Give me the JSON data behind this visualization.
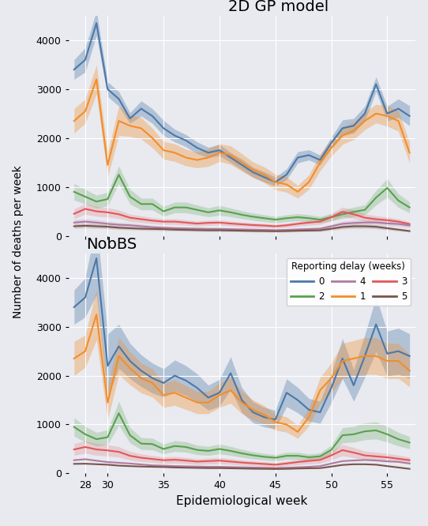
{
  "title_top": "2D GP model",
  "title_bottom": "NobBS",
  "xlabel": "Epidemiological week",
  "ylabel": "Number of deaths per week",
  "background_color": "#e8eaf0",
  "weeks": [
    27,
    28,
    29,
    30,
    31,
    32,
    33,
    34,
    35,
    36,
    37,
    38,
    39,
    40,
    41,
    42,
    43,
    44,
    45,
    46,
    47,
    48,
    49,
    50,
    51,
    52,
    53,
    54,
    55,
    56,
    57
  ],
  "colors": {
    "0": "#4c78a8",
    "1": "#f28e2b",
    "2": "#59a14f",
    "3": "#e15759",
    "4": "#b07aa1",
    "5": "#795548"
  },
  "gp_delay0_mean": [
    3400,
    3600,
    4350,
    3000,
    2800,
    2400,
    2600,
    2450,
    2200,
    2050,
    1950,
    1800,
    1700,
    1750,
    1600,
    1450,
    1300,
    1200,
    1100,
    1250,
    1600,
    1650,
    1550,
    1900,
    2200,
    2250,
    2500,
    3100,
    2500,
    2600,
    2450
  ],
  "gp_delay0_lo": [
    3200,
    3350,
    4100,
    2850,
    2650,
    2300,
    2450,
    2300,
    2050,
    1920,
    1820,
    1680,
    1600,
    1640,
    1500,
    1350,
    1200,
    1100,
    1020,
    1150,
    1490,
    1550,
    1450,
    1780,
    2050,
    2100,
    2350,
    2950,
    2350,
    2420,
    2250
  ],
  "gp_delay0_hi": [
    3600,
    3850,
    4600,
    3150,
    2950,
    2520,
    2760,
    2600,
    2360,
    2180,
    2070,
    1920,
    1810,
    1870,
    1700,
    1570,
    1400,
    1310,
    1200,
    1370,
    1720,
    1760,
    1650,
    2020,
    2370,
    2400,
    2650,
    3250,
    2650,
    2800,
    2660
  ],
  "gp_delay1_mean": [
    2350,
    2550,
    3200,
    1450,
    2350,
    2250,
    2200,
    2000,
    1750,
    1700,
    1600,
    1550,
    1600,
    1700,
    1650,
    1500,
    1350,
    1250,
    1100,
    1050,
    900,
    1100,
    1500,
    1800,
    2050,
    2150,
    2350,
    2500,
    2450,
    2350,
    1700
  ],
  "gp_delay1_lo": [
    2100,
    2300,
    2900,
    1200,
    2050,
    2030,
    1980,
    1800,
    1570,
    1520,
    1430,
    1390,
    1420,
    1520,
    1460,
    1320,
    1190,
    1090,
    940,
    890,
    770,
    950,
    1330,
    1630,
    1870,
    1970,
    2170,
    2310,
    2240,
    2140,
    1490
  ],
  "gp_delay1_hi": [
    2600,
    2800,
    3500,
    1700,
    2650,
    2470,
    2420,
    2200,
    1930,
    1880,
    1770,
    1710,
    1780,
    1880,
    1840,
    1680,
    1510,
    1410,
    1260,
    1210,
    1030,
    1250,
    1670,
    1970,
    2230,
    2330,
    2530,
    2690,
    2660,
    2560,
    1910
  ],
  "gp_delay2_mean": [
    900,
    800,
    700,
    750,
    1250,
    800,
    650,
    650,
    500,
    580,
    580,
    530,
    480,
    520,
    480,
    430,
    390,
    360,
    330,
    360,
    380,
    360,
    330,
    380,
    440,
    490,
    530,
    780,
    980,
    720,
    580
  ],
  "gp_delay2_lo": [
    730,
    650,
    570,
    610,
    1070,
    650,
    530,
    530,
    400,
    470,
    470,
    430,
    390,
    420,
    390,
    350,
    315,
    290,
    265,
    290,
    307,
    290,
    265,
    307,
    355,
    395,
    428,
    630,
    791,
    581,
    468
  ],
  "gp_delay2_hi": [
    1070,
    950,
    830,
    890,
    1430,
    950,
    770,
    770,
    600,
    690,
    690,
    630,
    570,
    620,
    570,
    510,
    465,
    430,
    395,
    430,
    453,
    430,
    395,
    453,
    525,
    585,
    632,
    930,
    1169,
    859,
    692
  ],
  "gp_delay3_mean": [
    450,
    550,
    500,
    480,
    440,
    370,
    340,
    310,
    290,
    290,
    270,
    250,
    265,
    270,
    250,
    235,
    220,
    210,
    195,
    215,
    245,
    270,
    290,
    380,
    490,
    440,
    370,
    340,
    320,
    290,
    240
  ],
  "gp_delay3_lo": [
    350,
    440,
    400,
    384,
    352,
    296,
    272,
    248,
    232,
    232,
    216,
    200,
    212,
    216,
    200,
    188,
    176,
    168,
    156,
    172,
    196,
    216,
    232,
    304,
    392,
    352,
    296,
    272,
    256,
    232,
    192
  ],
  "gp_delay3_hi": [
    550,
    660,
    600,
    576,
    528,
    444,
    408,
    372,
    348,
    348,
    324,
    300,
    318,
    324,
    300,
    282,
    264,
    252,
    234,
    258,
    294,
    324,
    348,
    456,
    588,
    528,
    444,
    408,
    384,
    348,
    288
  ],
  "gp_delay4_mean": [
    270,
    290,
    270,
    245,
    225,
    215,
    195,
    175,
    165,
    155,
    150,
    145,
    140,
    140,
    135,
    130,
    125,
    120,
    115,
    120,
    130,
    137,
    145,
    195,
    245,
    262,
    272,
    272,
    252,
    242,
    212
  ],
  "gp_delay4_lo": [
    210,
    230,
    210,
    192,
    177,
    169,
    153,
    138,
    130,
    122,
    118,
    114,
    110,
    110,
    106,
    102,
    98,
    94,
    90,
    94,
    102,
    108,
    114,
    153,
    192,
    206,
    213,
    213,
    198,
    190,
    166
  ],
  "gp_delay4_hi": [
    330,
    350,
    330,
    298,
    274,
    262,
    238,
    213,
    201,
    189,
    183,
    177,
    171,
    171,
    165,
    159,
    153,
    147,
    141,
    147,
    159,
    167,
    177,
    238,
    299,
    319,
    331,
    331,
    307,
    295,
    259
  ],
  "gp_delay5_mean": [
    195,
    205,
    195,
    185,
    165,
    155,
    145,
    140,
    135,
    126,
    121,
    116,
    112,
    112,
    108,
    104,
    99,
    97,
    93,
    97,
    104,
    108,
    112,
    145,
    179,
    194,
    194,
    184,
    155,
    126,
    97
  ],
  "gp_delay5_lo": [
    152,
    160,
    152,
    144,
    129,
    121,
    113,
    109,
    105,
    98,
    94,
    90,
    87,
    87,
    84,
    81,
    77,
    75,
    72,
    75,
    81,
    84,
    87,
    113,
    139,
    151,
    151,
    143,
    121,
    98,
    75
  ],
  "gp_delay5_hi": [
    238,
    250,
    238,
    226,
    202,
    190,
    178,
    171,
    165,
    154,
    148,
    142,
    137,
    137,
    132,
    127,
    121,
    118,
    113,
    118,
    127,
    132,
    137,
    178,
    219,
    237,
    237,
    225,
    190,
    154,
    118
  ],
  "nobs_delay0_mean": [
    3400,
    3600,
    4400,
    2200,
    2600,
    2300,
    2100,
    1950,
    1850,
    2000,
    1900,
    1750,
    1550,
    1650,
    2050,
    1500,
    1250,
    1150,
    1100,
    1650,
    1500,
    1300,
    1250,
    1750,
    2350,
    1800,
    2400,
    3050,
    2450,
    2500,
    2400
  ],
  "nobs_delay0_lo": [
    3050,
    3200,
    3650,
    1550,
    2150,
    1940,
    1775,
    1645,
    1560,
    1680,
    1595,
    1462,
    1295,
    1375,
    1715,
    1245,
    1037,
    950,
    910,
    1367,
    1240,
    1068,
    1025,
    1445,
    1940,
    1475,
    1965,
    2490,
    1990,
    2030,
    1945
  ],
  "nobs_delay0_hi": [
    3750,
    4000,
    5150,
    2850,
    3050,
    2660,
    2425,
    2255,
    2140,
    2320,
    2205,
    2038,
    1805,
    1925,
    2385,
    1755,
    1463,
    1350,
    1290,
    1933,
    1760,
    1532,
    1475,
    2055,
    2760,
    2125,
    2835,
    3610,
    2910,
    2970,
    2855
  ],
  "nobs_delay1_mean": [
    2350,
    2500,
    3250,
    1450,
    2400,
    2150,
    1950,
    1850,
    1600,
    1650,
    1550,
    1450,
    1450,
    1600,
    1700,
    1450,
    1300,
    1200,
    1050,
    1000,
    850,
    1150,
    1700,
    1950,
    2300,
    2350,
    2400,
    2400,
    2300,
    2300,
    2100
  ],
  "nobs_delay1_lo": [
    2000,
    2170,
    2730,
    1100,
    2020,
    1814,
    1645,
    1561,
    1350,
    1391,
    1308,
    1222,
    1222,
    1350,
    1435,
    1222,
    1097,
    1012,
    885,
    843,
    716,
    969,
    1434,
    1644,
    1941,
    1983,
    2024,
    2024,
    1941,
    1941,
    1771
  ],
  "nobs_delay1_hi": [
    2700,
    2830,
    3770,
    1800,
    2780,
    2486,
    2255,
    2139,
    1850,
    1909,
    1792,
    1678,
    1678,
    1850,
    1965,
    1678,
    1503,
    1388,
    1215,
    1157,
    984,
    1331,
    1966,
    2256,
    2659,
    2717,
    2776,
    2776,
    2659,
    2659,
    2429
  ],
  "nobs_delay2_mean": [
    950,
    800,
    700,
    740,
    1230,
    780,
    610,
    600,
    500,
    560,
    540,
    480,
    460,
    500,
    460,
    410,
    370,
    340,
    320,
    360,
    360,
    330,
    350,
    480,
    780,
    800,
    860,
    880,
    800,
    700,
    630
  ],
  "nobs_delay2_lo": [
    760,
    640,
    560,
    592,
    984,
    624,
    488,
    480,
    400,
    448,
    432,
    384,
    368,
    400,
    368,
    328,
    296,
    272,
    256,
    288,
    288,
    264,
    280,
    384,
    624,
    640,
    688,
    704,
    640,
    560,
    504
  ],
  "nobs_delay2_hi": [
    1140,
    960,
    840,
    888,
    1476,
    936,
    732,
    720,
    600,
    672,
    648,
    576,
    552,
    600,
    552,
    492,
    444,
    408,
    384,
    432,
    432,
    396,
    420,
    576,
    936,
    960,
    1032,
    1056,
    960,
    840,
    756
  ],
  "nobs_delay3_mean": [
    490,
    540,
    490,
    470,
    440,
    360,
    320,
    295,
    270,
    280,
    262,
    242,
    252,
    262,
    242,
    222,
    207,
    193,
    178,
    203,
    232,
    256,
    276,
    368,
    476,
    426,
    368,
    348,
    329,
    300,
    270
  ],
  "nobs_delay3_lo": [
    370,
    410,
    370,
    355,
    332,
    272,
    242,
    223,
    204,
    212,
    198,
    183,
    190,
    198,
    183,
    168,
    156,
    146,
    134,
    153,
    175,
    194,
    208,
    278,
    360,
    322,
    278,
    263,
    249,
    227,
    204
  ],
  "nobs_delay3_hi": [
    610,
    670,
    610,
    585,
    548,
    448,
    398,
    367,
    336,
    348,
    326,
    301,
    314,
    326,
    301,
    276,
    258,
    240,
    222,
    253,
    289,
    318,
    344,
    458,
    592,
    530,
    458,
    433,
    409,
    373,
    336
  ],
  "nobs_delay4_mean": [
    270,
    290,
    260,
    232,
    217,
    202,
    183,
    164,
    158,
    149,
    144,
    139,
    135,
    135,
    130,
    125,
    120,
    115,
    111,
    115,
    125,
    135,
    149,
    202,
    251,
    265,
    275,
    265,
    246,
    236,
    202
  ],
  "nobs_delay5_mean": [
    195,
    198,
    188,
    178,
    159,
    149,
    140,
    135,
    130,
    121,
    117,
    112,
    108,
    108,
    104,
    100,
    95,
    93,
    90,
    93,
    100,
    104,
    108,
    140,
    173,
    187,
    187,
    178,
    149,
    121,
    93
  ],
  "ylim": [
    0,
    4500
  ],
  "yticks": [
    0,
    1000,
    2000,
    3000,
    4000
  ],
  "xticks": [
    28,
    30,
    35,
    40,
    45,
    50,
    55
  ],
  "xlim_lo": 26.5,
  "xlim_hi": 57.5
}
